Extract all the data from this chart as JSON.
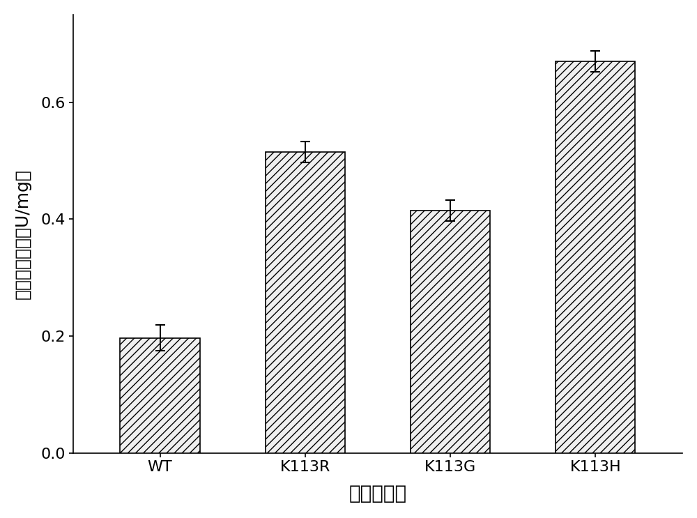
{
  "categories": [
    "WT",
    "K113R",
    "K113G",
    "K113H"
  ],
  "values": [
    0.197,
    0.515,
    0.415,
    0.67
  ],
  "errors": [
    0.022,
    0.018,
    0.018,
    0.018
  ],
  "ylabel": "羧肽酶比酶活（U/mg）",
  "xlabel": "不同突变体",
  "ylim": [
    0.0,
    0.75
  ],
  "yticks": [
    0.0,
    0.2,
    0.4,
    0.6
  ],
  "bar_color": "#f0f0f0",
  "bar_edgecolor": "#000000",
  "hatch": "///",
  "background_color": "#ffffff",
  "bar_width": 0.55,
  "ylabel_fontsize": 18,
  "xlabel_fontsize": 20,
  "tick_fontsize": 16,
  "errorbar_color": "#000000",
  "errorbar_capsize": 5,
  "errorbar_linewidth": 1.5
}
